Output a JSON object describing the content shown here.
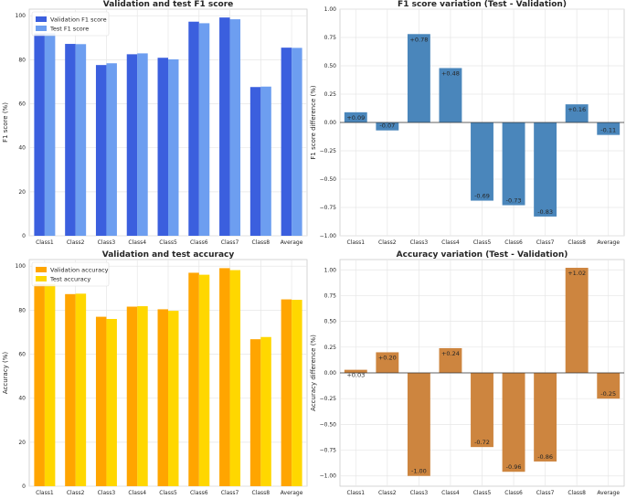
{
  "chart_data": [
    {
      "type": "bar",
      "title": "Validation and test F1 score",
      "xlabel": "",
      "ylabel": "F1 score (%)",
      "ylim": [
        0,
        103
      ],
      "yticks": [
        "0",
        "20",
        "40",
        "60",
        "80",
        "100"
      ],
      "grid": true,
      "legend": "top-left",
      "categories": [
        "Class1",
        "Class2",
        "Class3",
        "Class4",
        "Class5",
        "Class6",
        "Class7",
        "Class8",
        "Average"
      ],
      "series": [
        {
          "name": "Validation F1 score",
          "color": "#3b5fde",
          "values": [
            91.9,
            87.2,
            77.6,
            82.5,
            80.9,
            97.3,
            99.2,
            67.6,
            85.5
          ]
        },
        {
          "name": "Test F1 score",
          "color": "#6d9ef0",
          "values": [
            92.0,
            87.1,
            78.4,
            82.9,
            80.2,
            96.6,
            98.4,
            67.8,
            85.4
          ]
        }
      ]
    },
    {
      "type": "bar",
      "title": "F1 score variation (Test - Validation)",
      "xlabel": "",
      "ylabel": "F1 score difference (%)",
      "ylim": [
        -1.0,
        1.0
      ],
      "yticks": [
        "−1.00",
        "−0.75",
        "−0.50",
        "−0.25",
        "0.00",
        "0.25",
        "0.50",
        "0.75",
        "1.00"
      ],
      "grid": true,
      "categories": [
        "Class1",
        "Class2",
        "Class3",
        "Class4",
        "Class5",
        "Class6",
        "Class7",
        "Class8",
        "Average"
      ],
      "series": [
        {
          "name": "F1 score difference",
          "color": "#4a86bb",
          "values": [
            0.09,
            -0.07,
            0.78,
            0.48,
            -0.69,
            -0.73,
            -0.83,
            0.16,
            -0.11
          ]
        }
      ],
      "data_labels": [
        "+0.09",
        "-0.07",
        "+0.78",
        "+0.48",
        "-0.69",
        "-0.73",
        "-0.83",
        "+0.16",
        "-0.11"
      ]
    },
    {
      "type": "bar",
      "title": "Validation and test accuracy",
      "xlabel": "",
      "ylabel": "Accuracy (%)",
      "ylim": [
        0,
        103
      ],
      "yticks": [
        "0",
        "20",
        "40",
        "60",
        "80",
        "100"
      ],
      "grid": true,
      "legend": "top-left",
      "categories": [
        "Class1",
        "Class2",
        "Class3",
        "Class4",
        "Class5",
        "Class6",
        "Class7",
        "Class8",
        "Average"
      ],
      "series": [
        {
          "name": "Validation accuracy",
          "color": "#ffa500",
          "values": [
            91.9,
            87.3,
            77.0,
            81.6,
            80.4,
            97.0,
            99.1,
            66.8,
            84.9
          ]
        },
        {
          "name": "Test accuracy",
          "color": "#ffd700",
          "values": [
            91.9,
            87.5,
            76.0,
            81.8,
            79.7,
            96.1,
            98.2,
            67.8,
            84.7
          ]
        }
      ]
    },
    {
      "type": "bar",
      "title": "Accuracy variation (Test - Validation)",
      "xlabel": "",
      "ylabel": "Accuracy difference (%)",
      "ylim": [
        -1.1,
        1.1
      ],
      "yticks": [
        "−1.00",
        "−0.75",
        "−0.50",
        "−0.25",
        "0.00",
        "0.25",
        "0.50",
        "0.75",
        "1.00"
      ],
      "grid": true,
      "categories": [
        "Class1",
        "Class2",
        "Class3",
        "Class4",
        "Class5",
        "Class6",
        "Class7",
        "Class8",
        "Average"
      ],
      "series": [
        {
          "name": "Accuracy difference",
          "color": "#cd853f",
          "values": [
            0.03,
            0.2,
            -1.0,
            0.24,
            -0.72,
            -0.96,
            -0.86,
            1.02,
            -0.25
          ]
        }
      ],
      "data_labels": [
        "+0.03",
        "+0.20",
        "-1.00",
        "+0.24",
        "-0.72",
        "-0.96",
        "-0.86",
        "+1.02",
        "-0.25"
      ]
    }
  ]
}
